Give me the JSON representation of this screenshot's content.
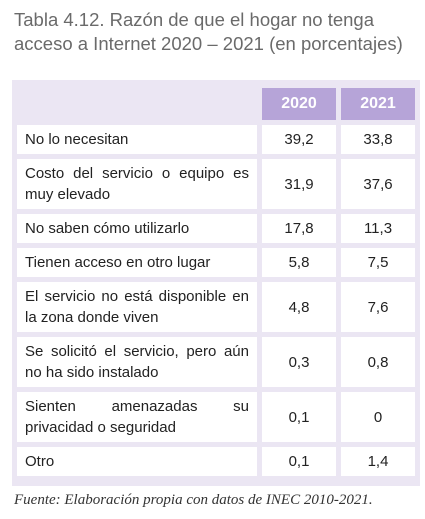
{
  "header": {
    "title": "Tabla 4.12. Razón de que el hogar no tenga acceso a Internet 2020 – 2021 (en porcentajes)"
  },
  "table": {
    "columns": [
      "2020",
      "2021"
    ],
    "rows": [
      [
        "No lo necesitan",
        "39,2",
        "33,8"
      ],
      [
        "Costo del servicio o equipo es muy elevado",
        "31,9",
        "37,6"
      ],
      [
        "No saben cómo utilizarlo",
        "17,8",
        "11,3"
      ],
      [
        "Tienen acceso en otro lugar",
        "5,8",
        "7,5"
      ],
      [
        "El servicio no está disponible en la zona donde viven",
        "4,8",
        "7,6"
      ],
      [
        "Se solicitó el servicio, pero aún no ha sido instalado",
        "0,3",
        "0,8"
      ],
      [
        "Sienten amenazadas su privacidad o seguridad",
        "0,1",
        "0"
      ],
      [
        "Otro",
        "0,1",
        "1,4"
      ]
    ]
  },
  "footer": {
    "source": "Fuente: Elaboración propia con datos de INEC 2010-2021."
  }
}
